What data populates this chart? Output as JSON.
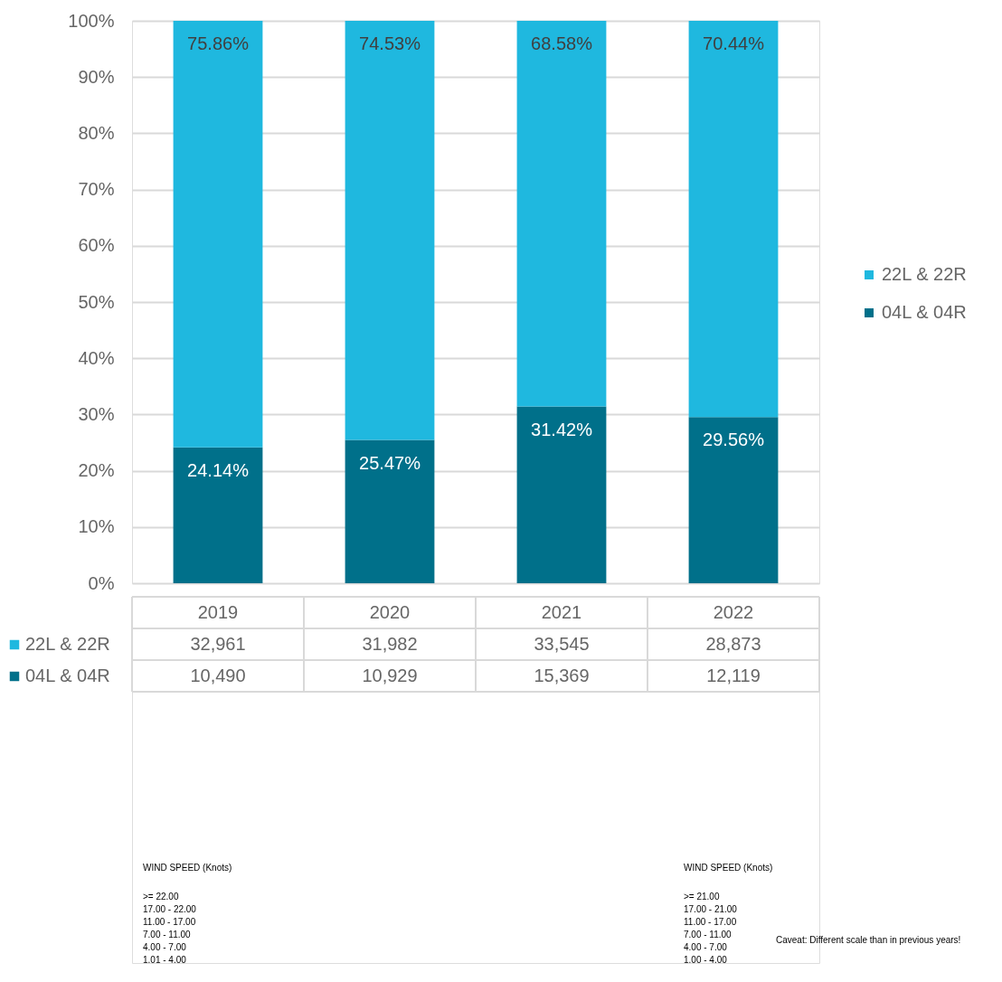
{
  "chart_data": {
    "type": "bar",
    "stacked": true,
    "categories": [
      "2019",
      "2020",
      "2021",
      "2022"
    ],
    "series": [
      {
        "name": "04L & 04R",
        "color": "#00708a",
        "values": [
          24.14,
          25.47,
          31.42,
          29.56
        ],
        "value_labels": [
          "24.14%",
          "25.47%",
          "31.42%",
          "29.56%"
        ]
      },
      {
        "name": "22L & 22R",
        "color": "#1fb8df",
        "values": [
          75.86,
          74.53,
          68.58,
          70.44
        ],
        "value_labels": [
          "75.86%",
          "74.53%",
          "68.58%",
          "70.44%"
        ]
      }
    ],
    "ylim": [
      0,
      100
    ],
    "yticks": [
      {
        "value": 0,
        "label": "0%"
      },
      {
        "value": 10,
        "label": "10%"
      },
      {
        "value": 20,
        "label": "20%"
      },
      {
        "value": 30,
        "label": "30%"
      },
      {
        "value": 40,
        "label": "40%"
      },
      {
        "value": 50,
        "label": "50%"
      },
      {
        "value": 60,
        "label": "60%"
      },
      {
        "value": 70,
        "label": "70%"
      },
      {
        "value": 80,
        "label": "80%"
      },
      {
        "value": 90,
        "label": "90%"
      },
      {
        "value": 100,
        "label": "100%"
      }
    ],
    "grid": "y",
    "legend": "right",
    "annotations": [
      "32,961",
      "31,982",
      "33,545",
      "28,873",
      "10,490",
      "10,929",
      "15,369",
      "12,119",
      "WIND SPEED (Knots)",
      ">= 22.00",
      "17.00 - 22.00",
      "11.00 - 17.00",
      "7.00 - 11.00",
      "4.00 - 7.00",
      "1.01 - 4.00",
      "WIND SPEED (Knots)",
      ">= 21.00",
      "17.00 - 21.00",
      "11.00 - 17.00",
      "7.00 - 11.00",
      "4.00 - 7.00",
      "1.00 - 4.00",
      "Caveat: Different scale than in previous years!"
    ]
  }
}
